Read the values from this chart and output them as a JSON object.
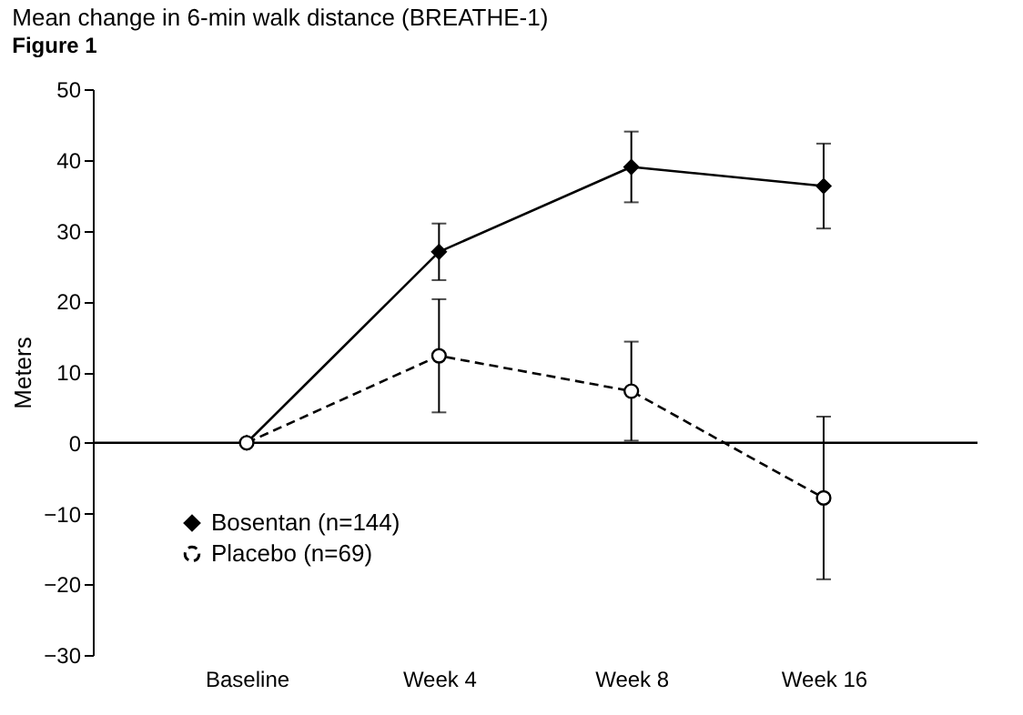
{
  "chart_data": {
    "type": "line",
    "title": "Mean change in 6-min walk distance (BREATHE-1)",
    "ylabel": "Meters",
    "annotations": [
      "Figure 1"
    ],
    "categories": [
      "Baseline",
      "Week 4",
      "Week 8",
      "Week 16"
    ],
    "series": [
      {
        "name": "Bosentan (n=144)",
        "color": "#000000",
        "values": [
          0,
          27,
          39,
          36.3
        ],
        "errors": [
          null,
          4,
          5,
          6
        ],
        "marker": "diamond",
        "line_style": "solid"
      },
      {
        "name": "Placebo (n=69)",
        "color": "#000000",
        "values": [
          0,
          12.3,
          7.3,
          -7.8
        ],
        "errors": [
          null,
          8,
          7,
          11.5
        ],
        "marker": "circle",
        "line_style": "dashed"
      }
    ],
    "ylim": [
      -30,
      50
    ],
    "yticks": [
      -30,
      -20,
      -10,
      0,
      10,
      20,
      30,
      40,
      50
    ],
    "ref_lines": [
      {
        "axis": "y",
        "value": 0
      }
    ],
    "grid": false,
    "legend": "bottom left"
  }
}
